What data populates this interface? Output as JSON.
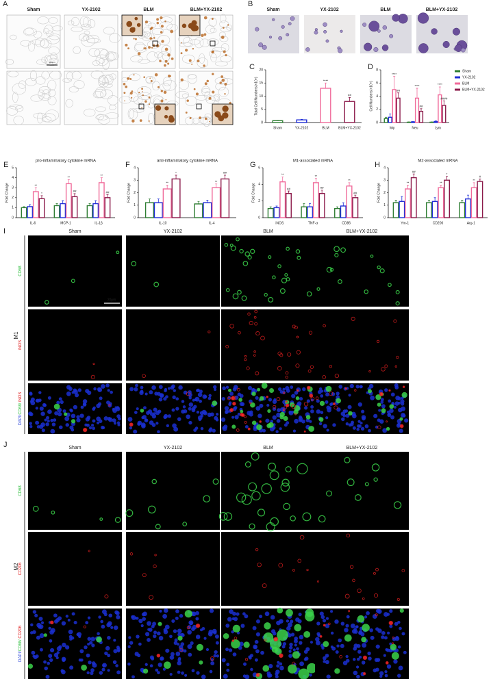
{
  "panels": {
    "A": {
      "label": "A",
      "columns": [
        "Sham",
        "YX-2102",
        "BLM",
        "BLM+YX-2102"
      ],
      "scale_bar": "100μm"
    },
    "B": {
      "label": "B",
      "columns": [
        "Sham",
        "YX-2102",
        "BLM",
        "BLM+YX-2102"
      ]
    },
    "I": {
      "label": "I",
      "group": "M1",
      "columns": [
        "Sham",
        "YX-2102",
        "BLM",
        "BLM+YX-2102"
      ],
      "rows": [
        [
          "CD68"
        ],
        [
          "iNOS"
        ],
        [
          "DAPI/",
          "CD68/ ",
          "iNOS"
        ]
      ],
      "scale_bar": "20μm"
    },
    "J": {
      "label": "J",
      "group": "M2",
      "columns": [
        "Sham",
        "YX-2102",
        "BLM",
        "BLM+YX-2102"
      ],
      "rows": [
        [
          "CD68"
        ],
        [
          "CD206"
        ],
        [
          "DAPI/",
          "CD68/ ",
          "CD206"
        ]
      ]
    }
  },
  "chart_data": [
    {
      "type": "bar",
      "label": "C",
      "ylabel": "Total Cell Numbers(×10⁴)",
      "categories": [
        "Sham",
        "YX-2102",
        "BLM",
        "BLM+YX-2102"
      ],
      "values": [
        0.7,
        1,
        13,
        8
      ],
      "errors": [
        0.1,
        0.2,
        2,
        1.5
      ],
      "annotations": [
        null,
        null,
        "****",
        "##"
      ],
      "colors": [
        "#2e7d32",
        "#1f2dd6",
        "#f06a9a",
        "#8b1a4a"
      ],
      "ylim": [
        0,
        20
      ],
      "yticks": [
        0,
        5,
        10,
        15,
        20
      ]
    },
    {
      "type": "bar",
      "label": "D",
      "ylabel": "Cell Numbers(×10⁴)",
      "legend": "right",
      "categories": [
        "Mφ",
        "Neu",
        "Lym"
      ],
      "series": [
        {
          "name": "Sham",
          "color": "#2e7d32",
          "values": [
            0.6,
            0.05,
            0.05
          ],
          "errors": [
            0.2,
            0.05,
            0.05
          ]
        },
        {
          "name": "YX-2102",
          "color": "#1f2dd6",
          "values": [
            0.8,
            0.1,
            0.15
          ],
          "errors": [
            0.5,
            0.05,
            0.1
          ]
        },
        {
          "name": "BLM",
          "color": "#f06a9a",
          "values": [
            5,
            3.7,
            4.2
          ],
          "errors": [
            2,
            1.5,
            1.2
          ],
          "annotations": [
            "****",
            "****",
            "****"
          ]
        },
        {
          "name": "BLM+YX-2102",
          "color": "#8b1a4a",
          "values": [
            3.7,
            1.7,
            2.6
          ],
          "errors": [
            0.8,
            0.4,
            0.7
          ],
          "annotations": [
            "##",
            "##",
            "####"
          ]
        }
      ],
      "ylim": [
        0,
        8
      ],
      "yticks": [
        0,
        2,
        4,
        6,
        8
      ]
    },
    {
      "type": "bar",
      "label": "E",
      "title": "pro-inflammatory cytokine mRNA",
      "ylabel": "Fold Change",
      "categories": [
        "IL-6",
        "MCP-1",
        "IL-1β"
      ],
      "series": [
        {
          "color": "#2e7d32",
          "values": [
            1,
            1.2,
            1.2
          ],
          "errors": [
            0.1,
            0.2,
            0.2
          ]
        },
        {
          "color": "#1f2dd6",
          "values": [
            1.1,
            1.4,
            1.4
          ],
          "errors": [
            0.2,
            0.3,
            0.3
          ]
        },
        {
          "color": "#f06a9a",
          "values": [
            2.6,
            3.4,
            3.5
          ],
          "errors": [
            0.4,
            0.4,
            0.5
          ],
          "annotations": [
            "**",
            "**",
            "**"
          ]
        },
        {
          "color": "#8b1a4a",
          "values": [
            1.9,
            2.1,
            2.0
          ],
          "errors": [
            0.3,
            0.3,
            0.3
          ],
          "annotations": [
            "*",
            "##",
            "##"
          ]
        }
      ],
      "ylim": [
        0,
        5
      ],
      "yticks": [
        0,
        1,
        2,
        3,
        4,
        5
      ]
    },
    {
      "type": "bar",
      "label": "F",
      "title": "anti-inflammatory cytokine mRNA",
      "ylabel": "Fold Change",
      "categories": [
        "IL-10",
        "IL-4"
      ],
      "series": [
        {
          "color": "#2e7d32",
          "values": [
            1.2,
            1.1
          ],
          "errors": [
            0.3,
            0.2
          ]
        },
        {
          "color": "#1f2dd6",
          "values": [
            1.2,
            1.2
          ],
          "errors": [
            0.3,
            0.2
          ]
        },
        {
          "color": "#f06a9a",
          "values": [
            2.3,
            2.4
          ],
          "errors": [
            0.3,
            0.3
          ],
          "annotations": [
            "**",
            "**"
          ]
        },
        {
          "color": "#8b1a4a",
          "values": [
            3.1,
            3.1
          ],
          "errors": [
            0.3,
            0.3
          ],
          "annotations": [
            "*",
            "##"
          ]
        }
      ],
      "ylim": [
        0,
        4
      ],
      "yticks": [
        0,
        1,
        2,
        3,
        4
      ]
    },
    {
      "type": "bar",
      "label": "G",
      "title": "M1-associated mRNA",
      "ylabel": "Fold Change",
      "categories": [
        "iNOS",
        "TNF-α",
        "CD86"
      ],
      "series": [
        {
          "color": "#2e7d32",
          "values": [
            1.1,
            1.3,
            1.1
          ],
          "errors": [
            0.2,
            0.4,
            0.2
          ]
        },
        {
          "color": "#1f2dd6",
          "values": [
            1.2,
            1.3,
            1.4
          ],
          "errors": [
            0.2,
            0.4,
            0.4
          ]
        },
        {
          "color": "#f06a9a",
          "values": [
            4.3,
            4.2,
            3.8
          ],
          "errors": [
            0.6,
            0.5,
            0.4
          ],
          "annotations": [
            "**",
            "**",
            "**"
          ]
        },
        {
          "color": "#8b1a4a",
          "values": [
            2.9,
            2.9,
            2.4
          ],
          "errors": [
            0.3,
            0.4,
            0.3
          ],
          "annotations": [
            "##",
            "##",
            "##"
          ]
        }
      ],
      "ylim": [
        0,
        6
      ],
      "yticks": [
        0,
        2,
        4,
        6
      ]
    },
    {
      "type": "bar",
      "label": "H",
      "title": "M2-associated mRNA",
      "ylabel": "Fold Change",
      "categories": [
        "Ym-1",
        "CD206",
        "Arg-1"
      ],
      "series": [
        {
          "color": "#2e7d32",
          "values": [
            1.2,
            1.2,
            1.2
          ],
          "errors": [
            0.2,
            0.2,
            0.2
          ]
        },
        {
          "color": "#1f2dd6",
          "values": [
            1.3,
            1.3,
            1.5
          ],
          "errors": [
            0.4,
            0.3,
            0.3
          ]
        },
        {
          "color": "#f06a9a",
          "values": [
            2.3,
            2.4,
            2.4
          ],
          "errors": [
            0.3,
            0.2,
            0.4
          ],
          "annotations": [
            "**",
            "**",
            "**"
          ]
        },
        {
          "color": "#8b1a4a",
          "values": [
            3.2,
            3.0,
            2.9
          ],
          "errors": [
            0.3,
            0.3,
            0.2
          ],
          "annotations": [
            "##",
            "*",
            "#"
          ]
        }
      ],
      "ylim": [
        0,
        4
      ],
      "yticks": [
        0,
        1,
        2,
        3,
        4
      ]
    }
  ]
}
